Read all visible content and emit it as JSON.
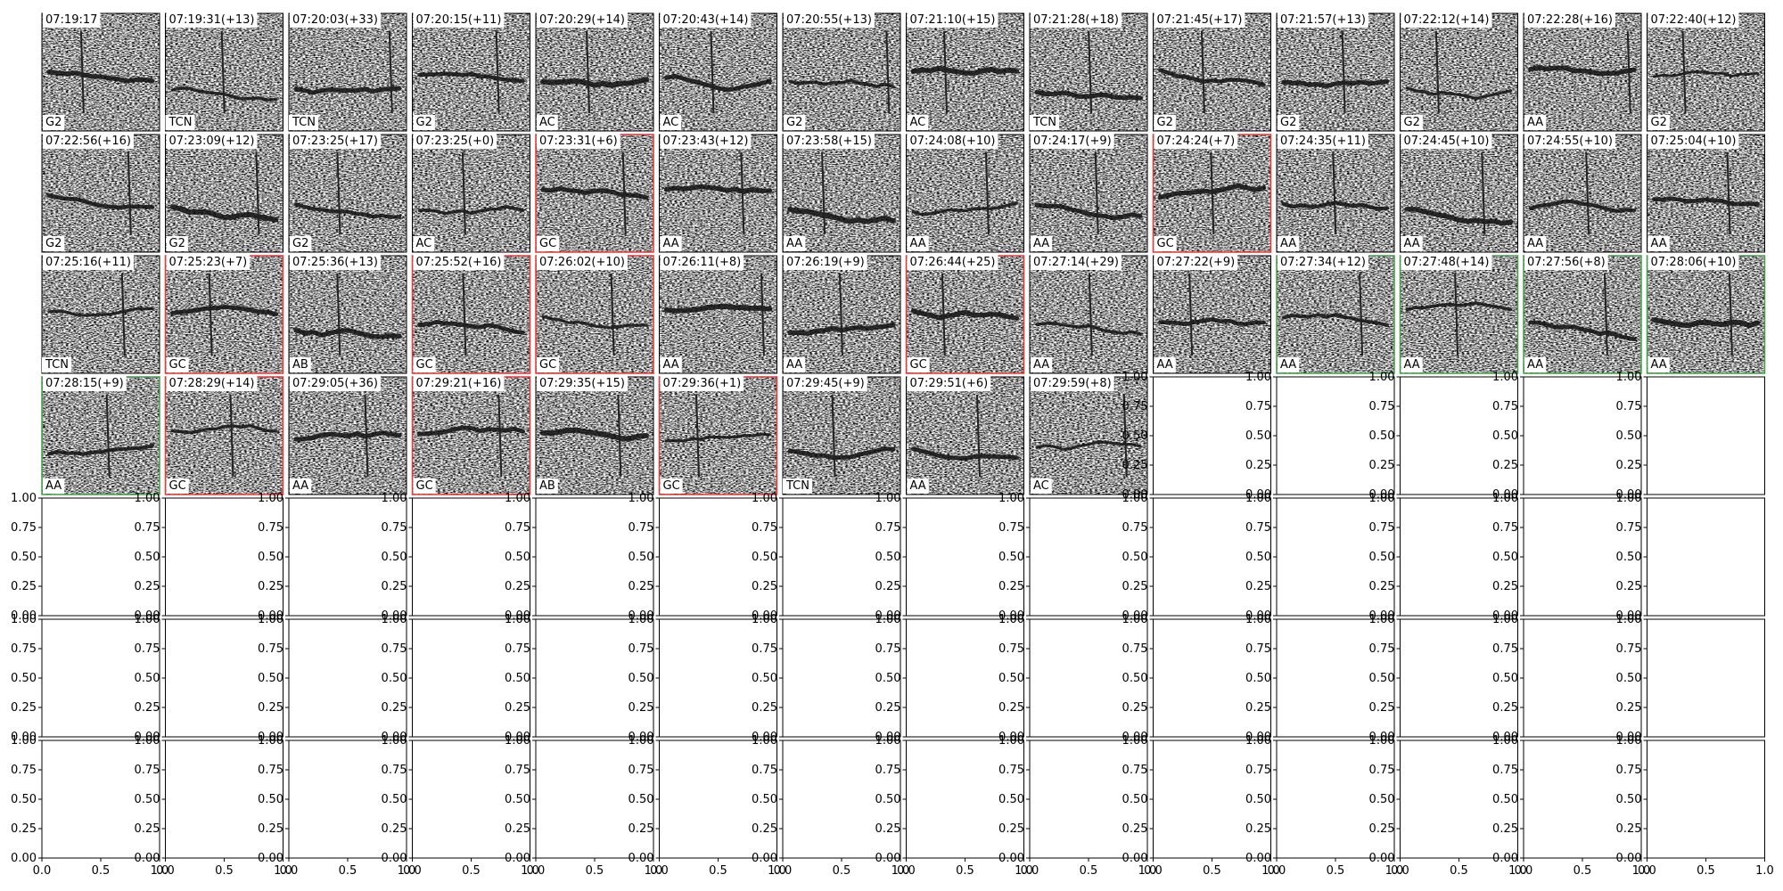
{
  "panels": [
    {
      "title": "07:19:17",
      "label": "G2"
    },
    {
      "title": "07:19:31(+13)",
      "label": "TCN"
    },
    {
      "title": "07:20:03(+33)",
      "label": "TCN"
    },
    {
      "title": "07:20:15(+11)",
      "label": "G2"
    },
    {
      "title": "07:20:29(+14)",
      "label": "AC"
    },
    {
      "title": "07:20:43(+14)",
      "label": "AC"
    },
    {
      "title": "07:20:55(+13)",
      "label": "G2"
    },
    {
      "title": "07:21:10(+15)",
      "label": "AC"
    },
    {
      "title": "07:21:28(+18)",
      "label": "TCN"
    },
    {
      "title": "07:21:45(+17)",
      "label": "G2"
    },
    {
      "title": "07:21:57(+13)",
      "label": "G2"
    },
    {
      "title": "07:22:12(+14)",
      "label": "G2"
    },
    {
      "title": "07:22:28(+16)",
      "label": "AA"
    },
    {
      "title": "07:22:40(+12)",
      "label": "G2"
    },
    {
      "title": "07:22:56(+16)",
      "label": "G2"
    },
    {
      "title": "07:23:09(+12)",
      "label": "G2"
    },
    {
      "title": "07:23:25(+17)",
      "label": "G2"
    },
    {
      "title": "07:23:25(+0)",
      "label": "AC"
    },
    {
      "title": "07:23:31(+6)",
      "label": "GC",
      "frame_color": "#e53935"
    },
    {
      "title": "07:23:43(+12)",
      "label": "AA"
    },
    {
      "title": "07:23:58(+15)",
      "label": "AA"
    },
    {
      "title": "07:24:08(+10)",
      "label": "AA"
    },
    {
      "title": "07:24:17(+9)",
      "label": "AA"
    },
    {
      "title": "07:24:24(+7)",
      "label": "GC",
      "frame_color": "#e53935"
    },
    {
      "title": "07:24:35(+11)",
      "label": "AA"
    },
    {
      "title": "07:24:45(+10)",
      "label": "AA"
    },
    {
      "title": "07:24:55(+10)",
      "label": "AA"
    },
    {
      "title": "07:25:04(+10)",
      "label": "AA"
    },
    {
      "title": "07:25:16(+11)",
      "label": "TCN"
    },
    {
      "title": "07:25:23(+7)",
      "label": "GC",
      "frame_color": "#e53935"
    },
    {
      "title": "07:25:36(+13)",
      "label": "AB"
    },
    {
      "title": "07:25:52(+16)",
      "label": "GC",
      "frame_color": "#e53935"
    },
    {
      "title": "07:26:02(+10)",
      "label": "GC",
      "frame_color": "#e53935"
    },
    {
      "title": "07:26:11(+8)",
      "label": "AA"
    },
    {
      "title": "07:26:19(+9)",
      "label": "AA"
    },
    {
      "title": "07:26:44(+25)",
      "label": "GC",
      "frame_color": "#e53935"
    },
    {
      "title": "07:27:14(+29)",
      "label": "AA"
    },
    {
      "title": "07:27:22(+9)",
      "label": "AA"
    },
    {
      "title": "07:27:34(+12)",
      "label": "AA",
      "frame_color": "#43a047"
    },
    {
      "title": "07:27:48(+14)",
      "label": "AA",
      "frame_color": "#43a047"
    },
    {
      "title": "07:27:56(+8)",
      "label": "AA",
      "frame_color": "#43a047"
    },
    {
      "title": "07:28:06(+10)",
      "label": "AA",
      "frame_color": "#43a047"
    },
    {
      "title": "07:28:15(+9)",
      "label": "AA",
      "frame_color": "#43a047"
    },
    {
      "title": "07:28:29(+14)",
      "label": "GC",
      "frame_color": "#e53935"
    },
    {
      "title": "07:29:05(+36)",
      "label": "AA"
    },
    {
      "title": "07:29:21(+16)",
      "label": "GC",
      "frame_color": "#e53935"
    },
    {
      "title": "07:29:35(+15)",
      "label": "AB"
    },
    {
      "title": "07:29:36(+1)",
      "label": "GC",
      "frame_color": "#e53935"
    },
    {
      "title": "07:29:45(+9)",
      "label": "TCN"
    },
    {
      "title": "07:29:51(+6)",
      "label": "AA"
    },
    {
      "title": "07:29:59(+8)",
      "label": "AC"
    }
  ],
  "empty_axes": {
    "yticks": [
      {
        "value": 0,
        "label": "0.00"
      },
      {
        "value": 0.25,
        "label": "0.25"
      },
      {
        "value": 0.5,
        "label": "0.50"
      },
      {
        "value": 0.75,
        "label": "0.75"
      },
      {
        "value": 1,
        "label": "1.00"
      }
    ],
    "xticks": [
      {
        "value": 0,
        "label": "0.0"
      },
      {
        "value": 0.5,
        "label": "0.5"
      },
      {
        "value": 1,
        "label": "1.0"
      }
    ]
  }
}
